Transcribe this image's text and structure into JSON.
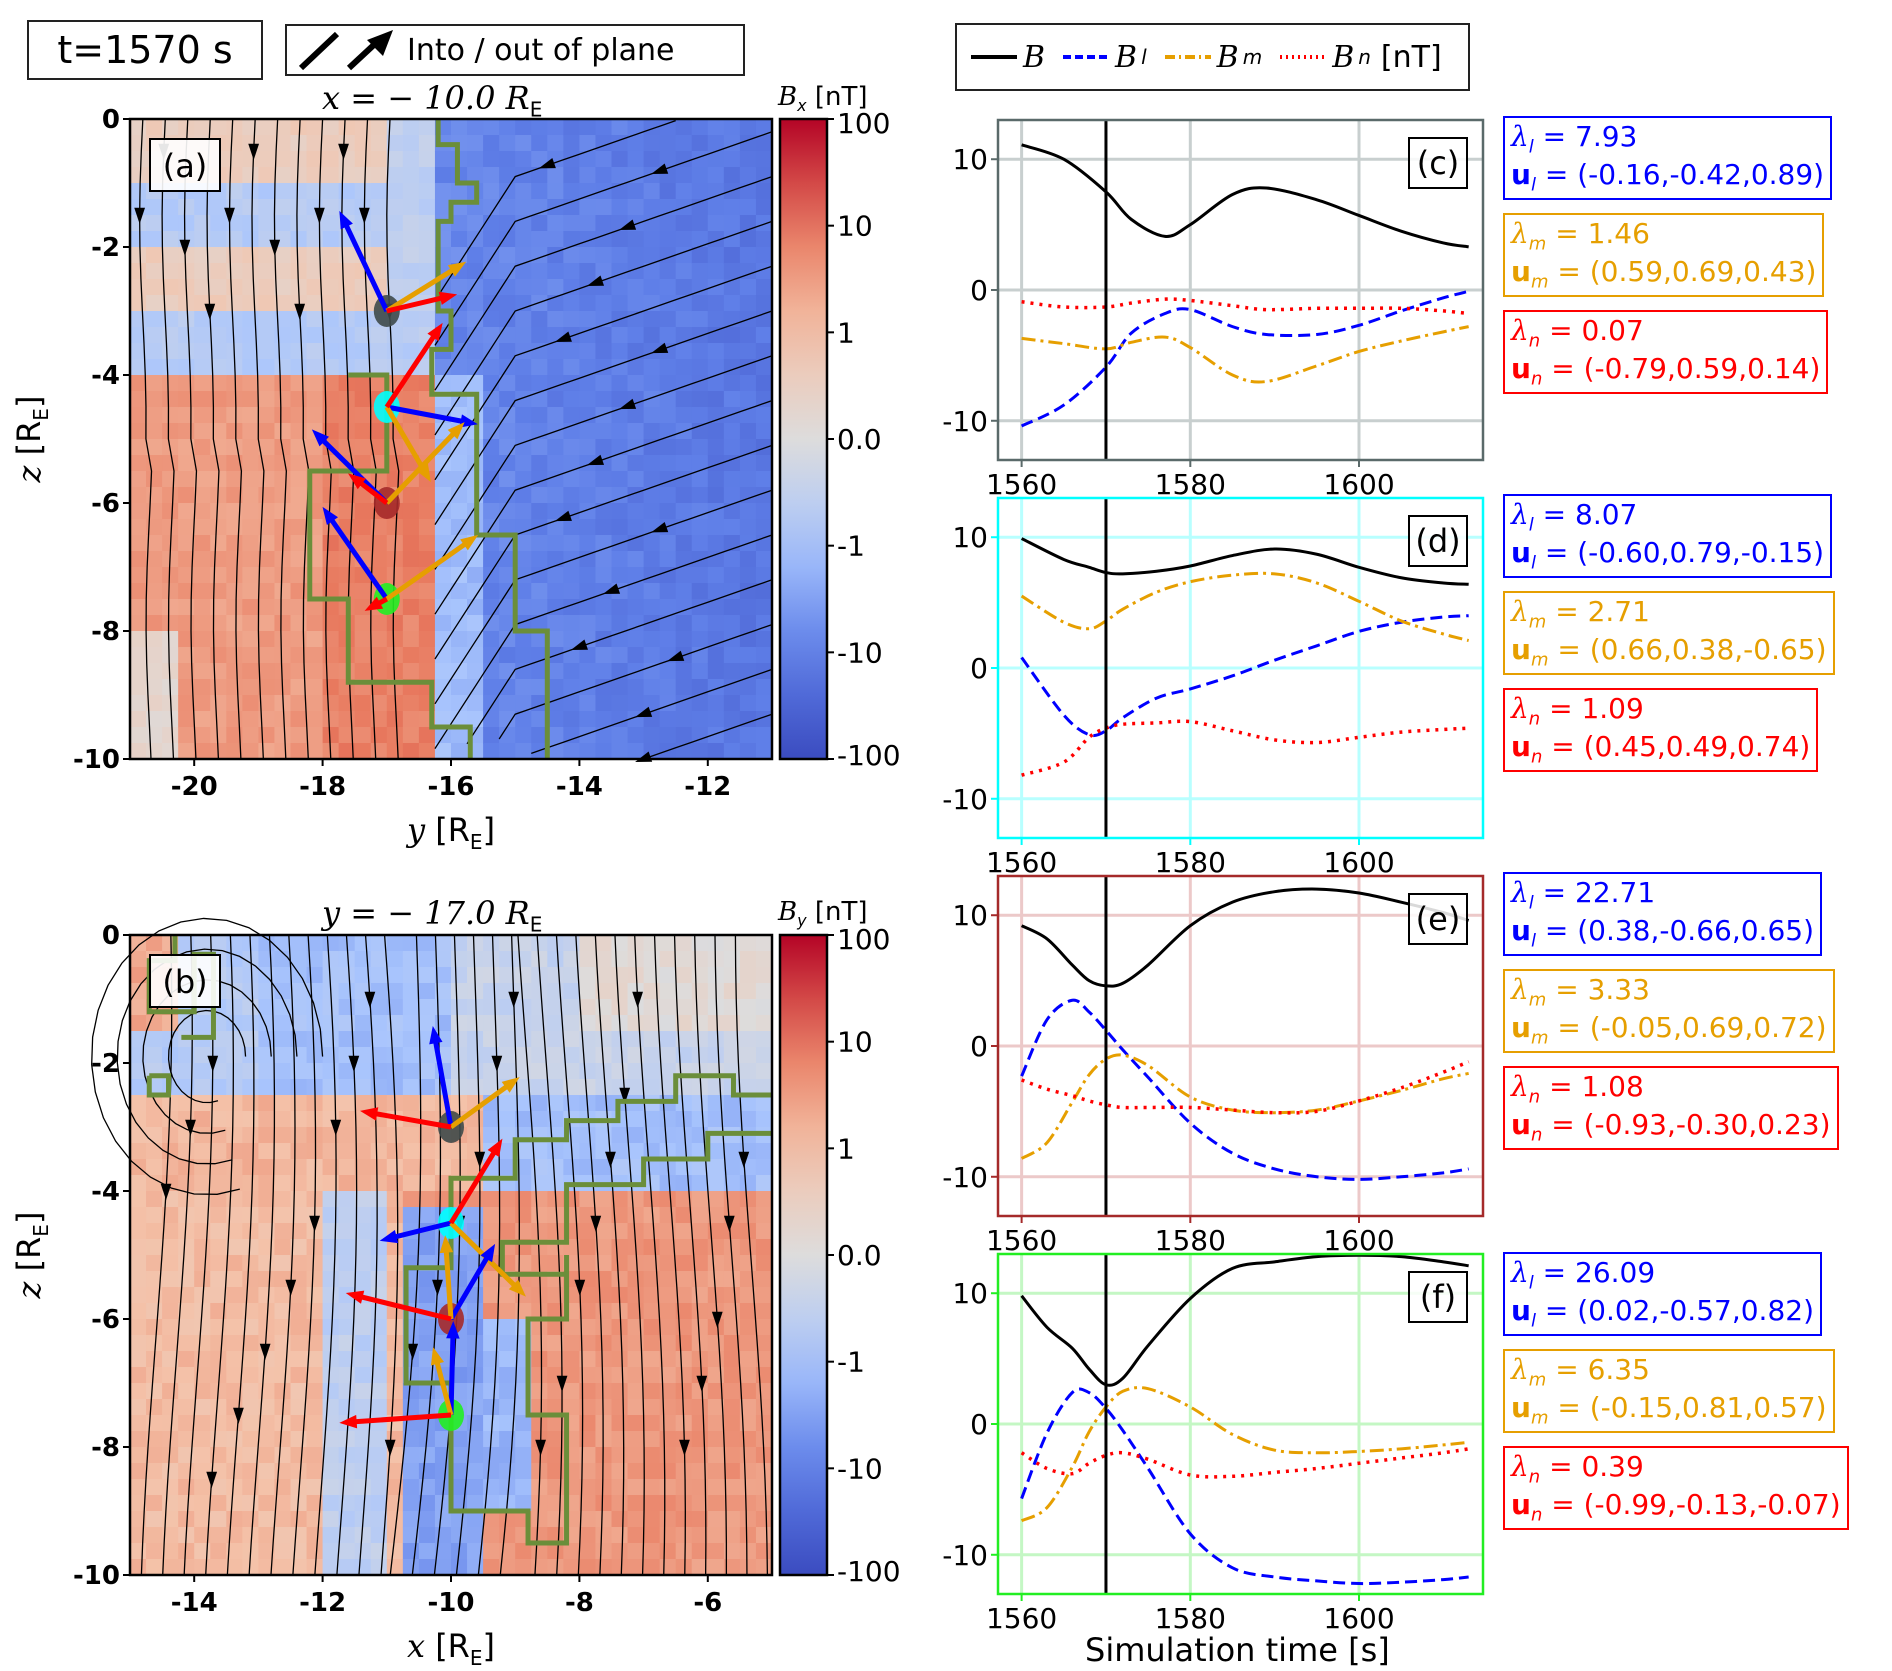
{
  "header": {
    "time_label": "t=1570 s",
    "plane_legend_label": "Into / out of plane",
    "series_legend": [
      {
        "symbol": "B",
        "sub": "",
        "style": "solid",
        "color": "#000000"
      },
      {
        "symbol": "B",
        "sub": "l",
        "style": "dashed",
        "color": "#0000ff"
      },
      {
        "symbol": "B",
        "sub": "m",
        "style": "dashdot",
        "color": "#e69f00"
      },
      {
        "symbol": "B",
        "sub": "n",
        "style": "dotted",
        "color": "#ff0000"
      }
    ],
    "series_legend_unit": "[nT]"
  },
  "colors": {
    "l": "#0000ff",
    "m": "#e69f00",
    "n": "#ff0000",
    "boundary": "#6b8e3a",
    "cmap_top": "#b40426",
    "cmap_mid": "#dddcdc",
    "cmap_bottom": "#3b4cc0"
  },
  "chart_data": [
    {
      "type": "heatmap",
      "panel": "(a)",
      "title": "x = − 10.0 R",
      "title_sub": "E",
      "xlabel": "y [R",
      "xlabel_sub": "E",
      "ylabel": "z [R",
      "ylabel_sub": "E",
      "xlim": [
        -21,
        -11
      ],
      "ylim": [
        -10,
        0
      ],
      "xticks": [
        -20,
        -18,
        -16,
        -14,
        -12
      ],
      "yticks": [
        0,
        -2,
        -4,
        -6,
        -8,
        -10
      ],
      "colorbar": {
        "label": "B",
        "label_sub": "x",
        "unit": "[nT]",
        "ticks": [
          "100",
          "10",
          "1",
          "0.0",
          "-1",
          "-10",
          "-100"
        ],
        "scale": "symlog"
      },
      "field_regions": [
        {
          "desc": "left strip positive Bx",
          "y_range": [
            -21,
            -16.3
          ],
          "z_range": [
            -10,
            -4
          ],
          "level": 0.55
        },
        {
          "desc": "upper left mixed",
          "y_range": [
            -21,
            -16.3
          ],
          "z_range": [
            -4,
            0
          ],
          "level": 0.05
        },
        {
          "desc": "right negative Bx",
          "y_range": [
            -16,
            -11
          ],
          "z_range": [
            -10,
            0
          ],
          "level": -0.65
        }
      ],
      "markers": [
        {
          "name": "c",
          "y": -17.0,
          "z": -3.0,
          "color": "#3f4a4a"
        },
        {
          "name": "d",
          "y": -17.0,
          "z": -4.5,
          "color": "#00ffff"
        },
        {
          "name": "e",
          "y": -17.0,
          "z": -6.0,
          "color": "#a52a2a"
        },
        {
          "name": "f",
          "y": -17.0,
          "z": -7.5,
          "color": "#22ee22"
        }
      ],
      "lmn_arrows": [
        {
          "marker": "c",
          "l": [
            -0.42,
            0.89
          ],
          "m": [
            0.69,
            0.43
          ],
          "n": [
            0.59,
            0.14
          ]
        },
        {
          "marker": "d",
          "l": [
            0.79,
            -0.15
          ],
          "m": [
            0.38,
            -0.65
          ],
          "n": [
            0.49,
            0.74
          ]
        },
        {
          "marker": "e",
          "l": [
            -0.66,
            0.65
          ],
          "m": [
            0.69,
            0.72
          ],
          "n": [
            -0.3,
            0.23
          ]
        },
        {
          "marker": "f",
          "l": [
            -0.57,
            0.82
          ],
          "m": [
            0.81,
            0.57
          ],
          "n": [
            -0.13,
            -0.07
          ]
        }
      ]
    },
    {
      "type": "heatmap",
      "panel": "(b)",
      "title": "y = − 17.0 R",
      "title_sub": "E",
      "xlabel": "x [R",
      "xlabel_sub": "E",
      "ylabel": "z [R",
      "ylabel_sub": "E",
      "xlim": [
        -15,
        -5
      ],
      "ylim": [
        -10,
        0
      ],
      "xticks": [
        -14,
        -12,
        -10,
        -8,
        -6
      ],
      "yticks": [
        0,
        -2,
        -4,
        -6,
        -8,
        -10
      ],
      "colorbar": {
        "label": "B",
        "label_sub": "y",
        "unit": "[nT]",
        "ticks": [
          "100",
          "10",
          "1",
          "0.0",
          "-1",
          "-10",
          "-100"
        ],
        "scale": "symlog"
      },
      "markers": [
        {
          "name": "c",
          "x": -10.0,
          "z": -3.0,
          "color": "#3f4a4a"
        },
        {
          "name": "d",
          "x": -10.0,
          "z": -4.5,
          "color": "#00ffff"
        },
        {
          "name": "e",
          "x": -10.0,
          "z": -6.0,
          "color": "#a52a2a"
        },
        {
          "name": "f",
          "x": -10.0,
          "z": -7.5,
          "color": "#22ee22"
        }
      ],
      "lmn_arrows": [
        {
          "marker": "c",
          "l": [
            -0.16,
            0.89
          ],
          "m": [
            0.59,
            0.43
          ],
          "n": [
            -0.79,
            0.14
          ]
        },
        {
          "marker": "d",
          "l": [
            -0.6,
            -0.15
          ],
          "m": [
            0.66,
            -0.65
          ],
          "n": [
            0.45,
            0.74
          ]
        },
        {
          "marker": "e",
          "l": [
            0.38,
            0.65
          ],
          "m": [
            -0.05,
            0.72
          ],
          "n": [
            -0.93,
            0.23
          ]
        },
        {
          "marker": "f",
          "l": [
            0.02,
            0.82
          ],
          "m": [
            -0.15,
            0.57
          ],
          "n": [
            -0.99,
            -0.07
          ]
        }
      ]
    },
    {
      "type": "line",
      "panel": "(c)",
      "frame_color": "#5a6a6a",
      "grid_color": "#c8cfcf",
      "xlim": [
        1557.2,
        1614.7
      ],
      "ylim": [
        -13,
        13
      ],
      "xticks": [
        1560,
        1580,
        1600
      ],
      "yticks": [
        10,
        0,
        -10
      ],
      "vline": 1570,
      "x": [
        1560,
        1565,
        1570,
        1573,
        1577,
        1580,
        1585,
        1589,
        1595,
        1600,
        1605,
        1610,
        1613
      ],
      "series": [
        {
          "name": "B",
          "values": [
            11.1,
            10.0,
            7.5,
            5.4,
            4.1,
            5.0,
            7.3,
            7.8,
            6.9,
            5.7,
            4.5,
            3.6,
            3.3
          ]
        },
        {
          "name": "Bl",
          "values": [
            -10.4,
            -8.8,
            -5.9,
            -3.3,
            -1.8,
            -1.5,
            -2.8,
            -3.4,
            -3.4,
            -2.7,
            -1.6,
            -0.6,
            -0.1
          ]
        },
        {
          "name": "Bm",
          "values": [
            -3.7,
            -4.1,
            -4.5,
            -4.0,
            -3.6,
            -4.4,
            -6.5,
            -7.0,
            -5.8,
            -4.7,
            -3.9,
            -3.2,
            -2.8
          ]
        },
        {
          "name": "Bn",
          "values": [
            -0.9,
            -1.3,
            -1.3,
            -1.0,
            -0.7,
            -0.8,
            -1.2,
            -1.5,
            -1.4,
            -1.4,
            -1.4,
            -1.6,
            -1.8
          ]
        }
      ],
      "annotations": {
        "lambda_l": "7.93",
        "u_l": "(-0.16,-0.42,0.89)",
        "lambda_m": "1.46",
        "u_m": "(0.59,0.69,0.43)",
        "lambda_n": "0.07",
        "u_n": "(-0.79,0.59,0.14)"
      }
    },
    {
      "type": "line",
      "panel": "(d)",
      "frame_color": "#00ffff",
      "grid_color": "#b8ffff",
      "xlim": [
        1557.2,
        1614.7
      ],
      "ylim": [
        -13,
        13
      ],
      "xticks": [
        1560,
        1580,
        1600
      ],
      "yticks": [
        10,
        0,
        -10
      ],
      "vline": 1570,
      "x": [
        1560,
        1565,
        1568,
        1570,
        1572,
        1576,
        1580,
        1585,
        1590,
        1595,
        1600,
        1605,
        1610,
        1613
      ],
      "series": [
        {
          "name": "B",
          "values": [
            9.9,
            8.3,
            7.7,
            7.3,
            7.2,
            7.4,
            7.8,
            8.6,
            9.1,
            8.7,
            7.7,
            6.9,
            6.5,
            6.4
          ]
        },
        {
          "name": "Bl",
          "values": [
            0.8,
            -3.6,
            -5.1,
            -4.8,
            -3.8,
            -2.3,
            -1.6,
            -0.6,
            0.6,
            1.7,
            2.8,
            3.5,
            3.9,
            4.0
          ]
        },
        {
          "name": "Bm",
          "values": [
            5.5,
            3.5,
            3.0,
            3.6,
            4.5,
            5.8,
            6.6,
            7.1,
            7.2,
            6.5,
            5.1,
            3.6,
            2.6,
            2.1
          ]
        },
        {
          "name": "Bn",
          "values": [
            -8.2,
            -7.2,
            -5.3,
            -4.6,
            -4.3,
            -4.2,
            -4.1,
            -4.8,
            -5.5,
            -5.7,
            -5.3,
            -4.9,
            -4.7,
            -4.6
          ]
        }
      ],
      "annotations": {
        "lambda_l": "8.07",
        "u_l": "(-0.60,0.79,-0.15)",
        "lambda_m": "2.71",
        "u_m": "(0.66,0.38,-0.65)",
        "lambda_n": "1.09",
        "u_n": "(0.45,0.49,0.74)"
      }
    },
    {
      "type": "line",
      "panel": "(e)",
      "frame_color": "#a52a2a",
      "grid_color": "#ecc9c9",
      "xlim": [
        1557.2,
        1614.7
      ],
      "ylim": [
        -13,
        13
      ],
      "xticks": [
        1560,
        1580,
        1600
      ],
      "yticks": [
        10,
        0,
        -10
      ],
      "vline": 1570,
      "x": [
        1560,
        1563,
        1566,
        1568,
        1570,
        1572,
        1575,
        1580,
        1585,
        1590,
        1595,
        1600,
        1605,
        1610,
        1613
      ],
      "series": [
        {
          "name": "B",
          "values": [
            9.2,
            8.2,
            6.2,
            5.0,
            4.6,
            4.8,
            6.2,
            9.2,
            11.0,
            11.8,
            12.0,
            11.7,
            11.0,
            10.2,
            9.6
          ]
        },
        {
          "name": "Bl",
          "values": [
            -2.3,
            2.0,
            3.5,
            2.6,
            1.2,
            -0.3,
            -2.4,
            -5.9,
            -8.2,
            -9.4,
            -10.0,
            -10.2,
            -10.0,
            -9.7,
            -9.4
          ]
        },
        {
          "name": "Bm",
          "values": [
            -8.6,
            -7.4,
            -4.3,
            -2.2,
            -1.0,
            -0.7,
            -1.5,
            -3.9,
            -4.9,
            -5.1,
            -4.9,
            -4.2,
            -3.4,
            -2.5,
            -2.1
          ]
        },
        {
          "name": "Bn",
          "values": [
            -2.6,
            -3.3,
            -3.8,
            -4.2,
            -4.5,
            -4.7,
            -4.7,
            -4.7,
            -4.9,
            -5.1,
            -5.0,
            -4.2,
            -3.2,
            -2.0,
            -1.2
          ]
        }
      ],
      "annotations": {
        "lambda_l": "22.71",
        "u_l": "(0.38,-0.66,0.65)",
        "lambda_m": "3.33",
        "u_m": "(-0.05,0.69,0.72)",
        "lambda_n": "1.08",
        "u_n": "(-0.93,-0.30,0.23)"
      }
    },
    {
      "type": "line",
      "panel": "(f)",
      "frame_color": "#22ee22",
      "grid_color": "#c4f7c4",
      "xlim": [
        1557.2,
        1614.7
      ],
      "ylim": [
        -13,
        13
      ],
      "xticks": [
        1560,
        1580,
        1600
      ],
      "yticks": [
        10,
        0,
        -10
      ],
      "vline": 1570,
      "x": [
        1560,
        1563,
        1566,
        1568,
        1570,
        1572,
        1575,
        1580,
        1585,
        1590,
        1595,
        1600,
        1605,
        1610,
        1613
      ],
      "series": [
        {
          "name": "B",
          "values": [
            9.8,
            7.4,
            5.8,
            4.2,
            3.0,
            3.5,
            6.0,
            9.6,
            11.9,
            12.4,
            12.8,
            12.9,
            12.8,
            12.4,
            12.1
          ]
        },
        {
          "name": "Bl",
          "values": [
            -5.7,
            -0.7,
            2.4,
            2.4,
            1.2,
            -0.5,
            -3.4,
            -8.4,
            -11.0,
            -11.7,
            -12.0,
            -12.2,
            -12.1,
            -11.9,
            -11.7
          ]
        },
        {
          "name": "Bm",
          "values": [
            -7.4,
            -6.4,
            -3.3,
            -0.6,
            1.3,
            2.5,
            2.7,
            1.3,
            -0.8,
            -2.0,
            -2.2,
            -2.1,
            -1.9,
            -1.6,
            -1.4
          ]
        },
        {
          "name": "Bn",
          "values": [
            -2.2,
            -3.4,
            -3.8,
            -3.0,
            -2.4,
            -2.2,
            -2.7,
            -3.9,
            -4.0,
            -3.7,
            -3.4,
            -3.0,
            -2.6,
            -2.2,
            -1.9
          ]
        }
      ],
      "xlabel": "Simulation time [s]",
      "annotations": {
        "lambda_l": "26.09",
        "u_l": "(0.02,-0.57,0.82)",
        "lambda_m": "6.35",
        "u_m": "(-0.15,0.81,0.57)",
        "lambda_n": "0.39",
        "u_n": "(-0.99,-0.13,-0.07)"
      }
    }
  ]
}
